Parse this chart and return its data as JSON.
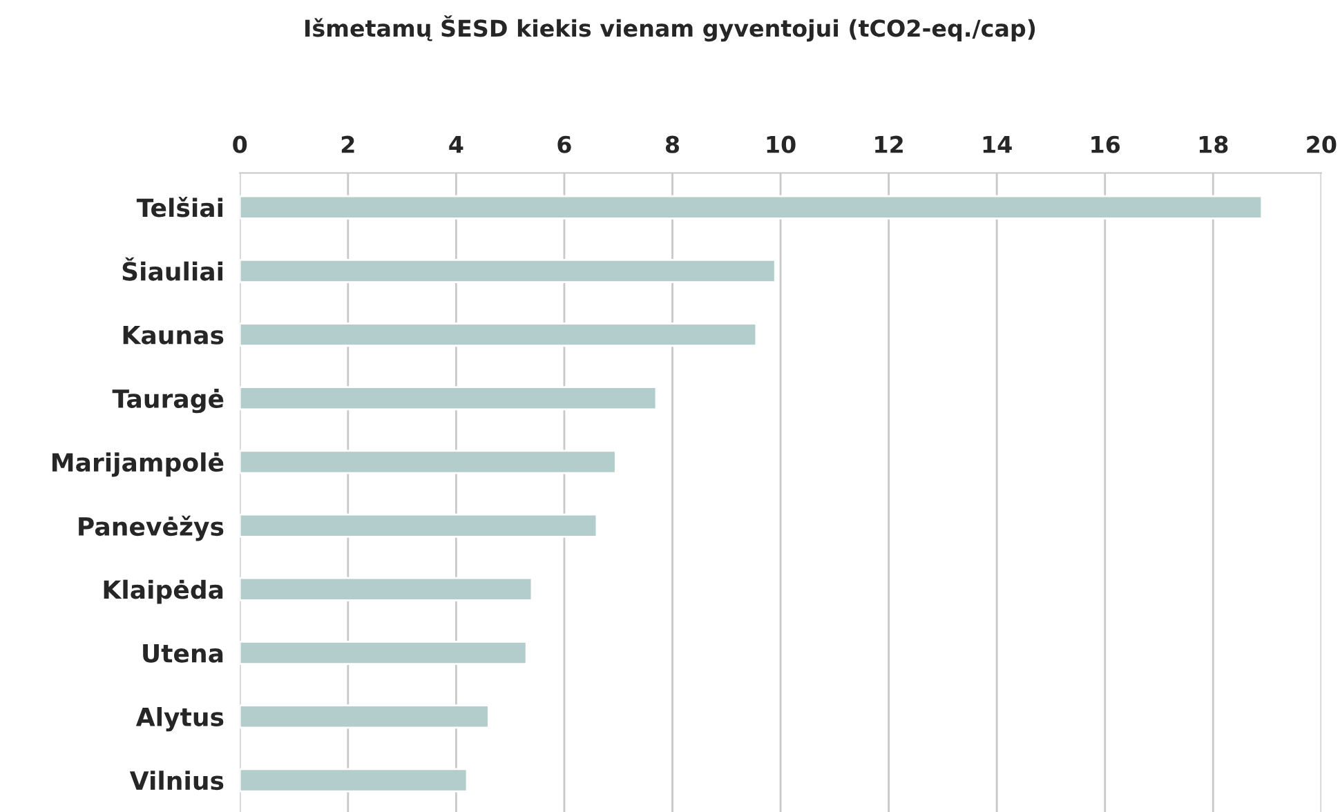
{
  "chart_data": {
    "type": "bar",
    "orientation": "horizontal",
    "title": "Išmetamų ŠESD kiekis vienam gyventojui (tCO2-eq./cap)",
    "categories": [
      "Telšiai",
      "Šiauliai",
      "Kaunas",
      "Tauragė",
      "Marijampolė",
      "Panevėžys",
      "Klaipėda",
      "Utena",
      "Alytus",
      "Vilnius"
    ],
    "values": [
      18.9,
      9.9,
      9.55,
      7.7,
      6.95,
      6.6,
      5.4,
      5.3,
      4.6,
      4.2
    ],
    "color": "#b2cdcc",
    "xlim": [
      0,
      20
    ],
    "xticks": [
      0,
      2,
      4,
      6,
      8,
      10,
      12,
      14,
      16,
      18,
      20
    ],
    "grid": "x"
  }
}
